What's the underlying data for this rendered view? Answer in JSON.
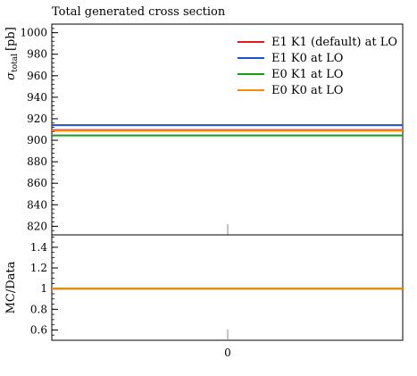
{
  "chart_data": [
    {
      "type": "line",
      "title": "Total generated cross section",
      "ylabel": "σ_total [pb]",
      "ylabel_main": "σ",
      "ylabel_sub": "total",
      "ylabel_unit": "[pb]",
      "xlabel": "",
      "ylim": [
        812,
        1008
      ],
      "yticks": [
        820,
        840,
        860,
        880,
        900,
        920,
        940,
        960,
        980,
        1000
      ],
      "x_tick_labels": [
        "0"
      ],
      "legend_position": "top-right",
      "series": [
        {
          "name": "E1 K1 (default) at LO",
          "value": 909.5,
          "color": "#e41a1c"
        },
        {
          "name": "E1 K0 at LO",
          "value": 914.0,
          "color": "#1f4fd8"
        },
        {
          "name": "E0 K1 at LO",
          "value": 904.5,
          "color": "#1a9e1a"
        },
        {
          "name": "E0 K0 at LO",
          "value": 909.0,
          "color": "#ff8c00"
        }
      ]
    },
    {
      "type": "line",
      "ylabel": "MC/Data",
      "ylim": [
        0.5,
        1.52
      ],
      "yticks": [
        0.6,
        0.8,
        1,
        1.2,
        1.4
      ],
      "ytick_labels": [
        "0.6",
        "0.8",
        "1",
        "1.2",
        "1.4"
      ],
      "x_tick_labels": [
        "0"
      ],
      "series": [
        {
          "name": "E1 K1 (default) at LO",
          "value": 1.0,
          "color": "#e41a1c"
        },
        {
          "name": "E1 K0 at LO",
          "value": 1.0,
          "color": "#1f4fd8"
        },
        {
          "name": "E0 K1 at LO",
          "value": 1.0,
          "color": "#1a9e1a"
        },
        {
          "name": "E0 K0 at LO",
          "value": 1.0,
          "color": "#ff8c00"
        }
      ]
    }
  ]
}
